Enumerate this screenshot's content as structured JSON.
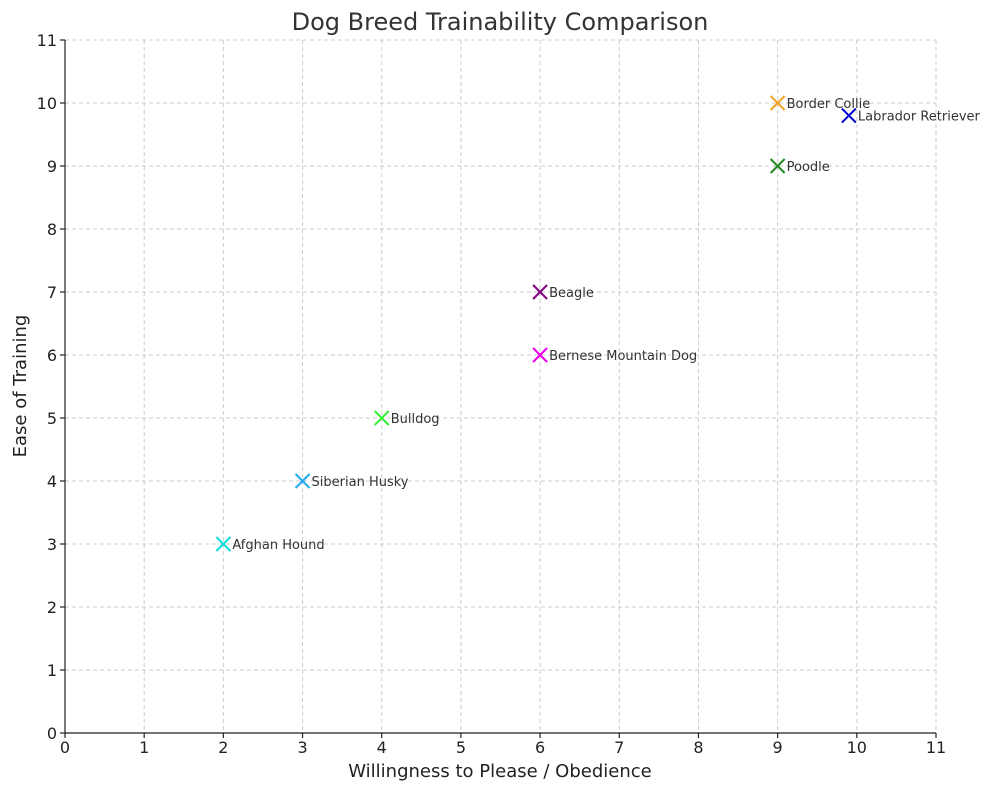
{
  "chart_data": {
    "type": "scatter",
    "title": "Dog Breed Trainability Comparison",
    "xlabel": "Willingness to Please / Obedience",
    "ylabel": "Ease of Training",
    "xlim": [
      0,
      11
    ],
    "ylim": [
      0,
      11
    ],
    "xticks": [
      0,
      1,
      2,
      3,
      4,
      5,
      6,
      7,
      8,
      9,
      10,
      11
    ],
    "yticks": [
      0,
      1,
      2,
      3,
      4,
      5,
      6,
      7,
      8,
      9,
      10,
      11
    ],
    "grid": true,
    "marker": "x",
    "points": [
      {
        "label": "Border Collie",
        "x": 9,
        "y": 10,
        "color": "#f2a227"
      },
      {
        "label": "Labrador Retriever",
        "x": 9.9,
        "y": 9.8,
        "color": "#0000cc"
      },
      {
        "label": "Poodle",
        "x": 9,
        "y": 9,
        "color": "#228b22"
      },
      {
        "label": "Beagle",
        "x": 6,
        "y": 7,
        "color": "#800080"
      },
      {
        "label": "Bernese Mountain Dog",
        "x": 6,
        "y": 6,
        "color": "#ee00ee"
      },
      {
        "label": "Bulldog",
        "x": 4,
        "y": 5,
        "color": "#33ee33"
      },
      {
        "label": "Siberian Husky",
        "x": 3,
        "y": 4,
        "color": "#22aaee"
      },
      {
        "label": "Afghan Hound",
        "x": 2,
        "y": 3,
        "color": "#11dddd"
      }
    ]
  }
}
